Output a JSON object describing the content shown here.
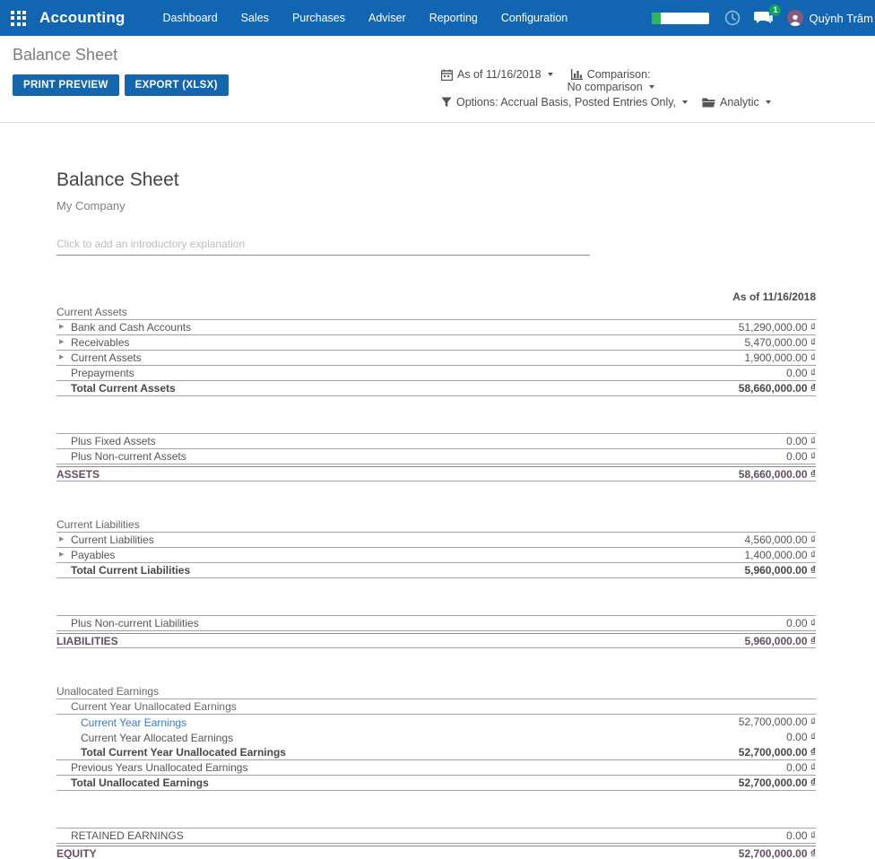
{
  "navbar": {
    "app_name": "Accounting",
    "menu_items": [
      "Dashboard",
      "Sales",
      "Purchases",
      "Adviser",
      "Reporting",
      "Configuration"
    ],
    "progress_percent": 15,
    "message_badge_count": "1",
    "user_name": "Quỳnh Trâm"
  },
  "control_panel": {
    "breadcrumb": "Balance Sheet",
    "buttons": {
      "print_preview": "PRINT PREVIEW",
      "export_xlsx": "EXPORT (XLSX)"
    },
    "filters": {
      "date_label": "As of 11/16/2018",
      "comparison_label": "Comparison:",
      "comparison_value": "No comparison",
      "options_label": "Options: Accrual Basis, Posted Entries Only,",
      "analytic_label": "Analytic"
    }
  },
  "report": {
    "title": "Balance Sheet",
    "company": "My Company",
    "intro_placeholder": "Click to add an introductory explanation",
    "column_header": "As of 11/16/2018",
    "rows": [
      {
        "type": "section",
        "indent": 0,
        "label": "Current Assets"
      },
      {
        "type": "item",
        "indent": 1,
        "caret": true,
        "label": "Bank and Cash Accounts",
        "value": "51,290,000.00 ₫"
      },
      {
        "type": "item",
        "indent": 1,
        "caret": true,
        "label": "Receivables",
        "value": "5,470,000.00 ₫"
      },
      {
        "type": "item",
        "indent": 1,
        "caret": true,
        "label": "Current Assets",
        "value": "1,900,000.00 ₫"
      },
      {
        "type": "item",
        "indent": 1,
        "label": "Prepayments",
        "value": "0.00 ₫"
      },
      {
        "type": "total",
        "indent": 1,
        "label": "Total Current Assets",
        "value": "58,660,000.00 ₫"
      },
      {
        "type": "spacer",
        "bordered": true
      },
      {
        "type": "item",
        "indent": 1,
        "label": "Plus Fixed Assets",
        "value": "0.00 ₫"
      },
      {
        "type": "item",
        "indent": 1,
        "label": "Plus Non-current Assets",
        "value": "0.00 ₫"
      },
      {
        "type": "grand",
        "indent": 0,
        "label": "ASSETS",
        "value": "58,660,000.00 ₫"
      },
      {
        "type": "spacer",
        "bordered": false
      },
      {
        "type": "section",
        "indent": 0,
        "label": "Current Liabilities"
      },
      {
        "type": "item",
        "indent": 1,
        "caret": true,
        "label": "Current Liabilities",
        "value": "4,560,000.00 ₫"
      },
      {
        "type": "item",
        "indent": 1,
        "caret": true,
        "label": "Payables",
        "value": "1,400,000.00 ₫"
      },
      {
        "type": "total",
        "indent": 1,
        "label": "Total Current Liabilities",
        "value": "5,960,000.00 ₫"
      },
      {
        "type": "spacer",
        "bordered": true
      },
      {
        "type": "item",
        "indent": 1,
        "label": "Plus Non-current Liabilities",
        "value": "0.00 ₫"
      },
      {
        "type": "grand",
        "indent": 0,
        "label": "LIABILITIES",
        "value": "5,960,000.00 ₫"
      },
      {
        "type": "spacer",
        "bordered": false
      },
      {
        "type": "section",
        "indent": 0,
        "label": "Unallocated Earnings"
      },
      {
        "type": "section",
        "indent": 1,
        "label": "Current Year Unallocated Earnings"
      },
      {
        "type": "item",
        "indent": 2,
        "link": true,
        "noborder": true,
        "label": "Current Year Earnings",
        "value": "52,700,000.00 ₫"
      },
      {
        "type": "item",
        "indent": 2,
        "noborder": true,
        "label": "Current Year Allocated Earnings",
        "value": "0.00 ₫"
      },
      {
        "type": "total",
        "indent": 2,
        "label": "Total Current Year Unallocated Earnings",
        "value": "52,700,000.00 ₫"
      },
      {
        "type": "item",
        "indent": 1,
        "label": "Previous Years Unallocated Earnings",
        "value": "0.00 ₫"
      },
      {
        "type": "total",
        "indent": 1,
        "label": "Total Unallocated Earnings",
        "value": "52,700,000.00 ₫"
      },
      {
        "type": "spacer",
        "bordered": true
      },
      {
        "type": "item",
        "indent": 1,
        "label": "RETAINED EARNINGS",
        "value": "0.00 ₫"
      },
      {
        "type": "grand",
        "indent": 0,
        "label": "EQUITY",
        "value": "52,700,000.00 ₫"
      }
    ]
  },
  "colors": {
    "navbar_bg": "#1266b1",
    "button_bg": "#1566ac",
    "link_blue": "#3b78c8",
    "grand_total_purple": "#664d63",
    "badge_green": "#12a063",
    "progress_green": "#2eb85c",
    "avatar_purple": "#875a7b"
  }
}
